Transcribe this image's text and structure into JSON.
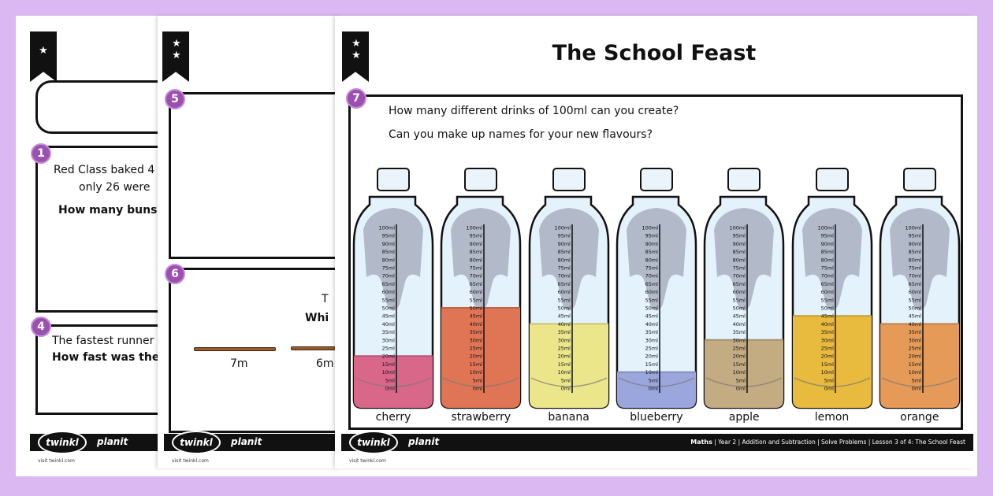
{
  "pages": {
    "a": {
      "stars": "★",
      "q1": {
        "number": "1",
        "line1": "Red Class baked 4",
        "line2": "only 26 were",
        "question": "How many buns"
      },
      "q4": {
        "number": "4",
        "line1": "The fastest runner",
        "question": "How fast was the"
      }
    },
    "b": {
      "stars": "★★",
      "q5": {
        "number": "5"
      },
      "q6": {
        "number": "6",
        "line1": "T",
        "question": "Whi",
        "sticks": [
          "7m",
          "6m"
        ]
      }
    },
    "c": {
      "stars": "★★",
      "title": "The School Feast",
      "q7": {
        "number": "7",
        "line1": "How many different drinks of 100ml can you create?",
        "line2": "Can you make up names for your new flavours?"
      },
      "scale": {
        "min": 0,
        "max": 100,
        "step": 5,
        "unit": "ml"
      },
      "bottles": [
        {
          "label": "cherry",
          "ml": 20,
          "color": "#d9678a"
        },
        {
          "label": "strawberry",
          "ml": 50,
          "color": "#e07555"
        },
        {
          "label": "banana",
          "ml": 40,
          "color": "#ece68a"
        },
        {
          "label": "blueberry",
          "ml": 10,
          "color": "#9aa6dc"
        },
        {
          "label": "apple",
          "ml": 30,
          "color": "#c3ab82"
        },
        {
          "label": "lemon",
          "ml": 45,
          "color": "#e8bb3e"
        },
        {
          "label": "orange",
          "ml": 40,
          "color": "#e59a58"
        }
      ]
    }
  },
  "footer": {
    "logo": "twinkl",
    "brand": "planit",
    "visit": "visit twinkl.com",
    "subject": "Maths",
    "breadcrumb": " | Year 2 | Addition and Subtraction | Solve Problems | Lesson 3 of 4: The School Feast"
  },
  "colors": {
    "background": "#dcb8f2",
    "badge": "#9b4fb0"
  }
}
